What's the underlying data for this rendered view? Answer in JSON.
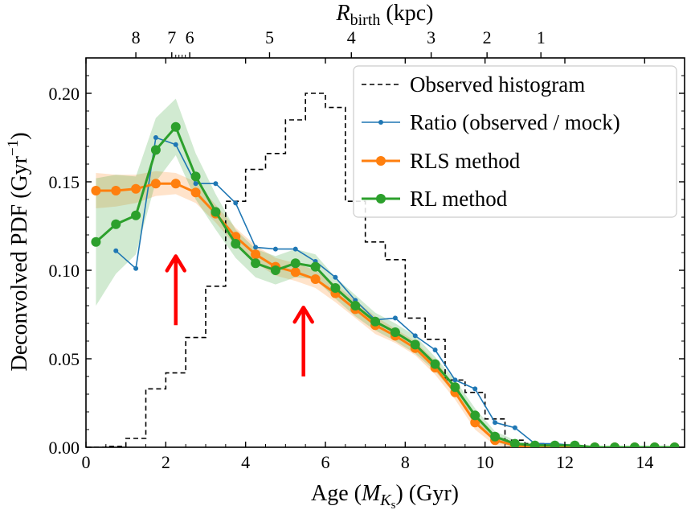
{
  "chart_data": {
    "type": "line",
    "xlabel": {
      "prefix": "Age  (",
      "var": "M",
      "sub": "K",
      "subsub": "s",
      "suffix": ")  (Gyr)"
    },
    "ylabel": {
      "prefix": "Deconvolved PDF  (Gyr",
      "sup": "−1",
      "suffix": ")"
    },
    "top_axis_label": {
      "var": "R",
      "sub": "birth",
      "suffix": "  (kpc)"
    },
    "xlim": [
      0,
      15
    ],
    "ylim": [
      0,
      0.22
    ],
    "x_ticks": [
      0,
      2,
      4,
      6,
      8,
      10,
      12,
      14
    ],
    "y_ticks": [
      0.0,
      0.05,
      0.1,
      0.15,
      0.2
    ],
    "y_tick_labels": [
      "0.00",
      "0.05",
      "0.10",
      "0.15",
      "0.20"
    ],
    "top_ticks": [
      {
        "label": "8",
        "age": 1.25
      },
      {
        "label": "7",
        "age": 2.15
      },
      {
        "label": "6",
        "age": 2.6
      },
      {
        "label": "5",
        "age": 4.6
      },
      {
        "label": "4",
        "age": 6.65
      },
      {
        "label": "3",
        "age": 8.65
      },
      {
        "label": "2",
        "age": 10.05
      },
      {
        "label": "1",
        "age": 11.4
      }
    ],
    "top_minor_ticks": [
      2.25,
      2.33,
      2.41,
      2.49
    ],
    "legend_position": "upper right",
    "series": [
      {
        "name": "Observed histogram",
        "kind": "step",
        "color": "#000000",
        "bin_edges": [
          0.0,
          0.5,
          1.0,
          1.5,
          2.0,
          2.5,
          3.0,
          3.5,
          4.0,
          4.5,
          5.0,
          5.5,
          6.0,
          6.5,
          7.0,
          7.5,
          8.0,
          8.5,
          9.0,
          9.5,
          10.0,
          10.5,
          11.0,
          11.5,
          12.0,
          12.5,
          13.0
        ],
        "values": [
          0.0,
          0.0005,
          0.005,
          0.033,
          0.042,
          0.062,
          0.091,
          0.139,
          0.157,
          0.166,
          0.185,
          0.2,
          0.192,
          0.139,
          0.116,
          0.106,
          0.073,
          0.061,
          0.038,
          0.031,
          0.016,
          0.004,
          0.002,
          0.001,
          0.0,
          0.0
        ]
      },
      {
        "name": "Ratio (observed / mock)",
        "kind": "line",
        "color": "#1f77b4",
        "x": [
          0.75,
          1.25,
          1.75,
          2.25,
          2.75,
          3.25,
          3.75,
          4.25,
          4.75,
          5.25,
          5.75,
          6.25,
          6.75,
          7.25,
          7.75,
          8.25,
          8.75,
          9.25,
          9.75,
          10.25,
          10.75,
          11.25,
          11.75,
          12.25,
          12.75
        ],
        "y": [
          0.111,
          0.101,
          0.175,
          0.171,
          0.149,
          0.149,
          0.138,
          0.113,
          0.112,
          0.112,
          0.105,
          0.096,
          0.083,
          0.072,
          0.073,
          0.063,
          0.055,
          0.038,
          0.033,
          0.014,
          0.011,
          0.002,
          0.002,
          0.001,
          0.0
        ]
      },
      {
        "name": "RLS method",
        "kind": "line",
        "color": "#ff7f0e",
        "band_color": "#ff7f0e",
        "x": [
          0.25,
          0.75,
          1.25,
          1.75,
          2.25,
          2.75,
          3.25,
          3.75,
          4.25,
          4.75,
          5.25,
          5.75,
          6.25,
          6.75,
          7.25,
          7.75,
          8.25,
          8.75,
          9.25,
          9.75,
          10.25,
          10.75,
          11.25,
          11.75,
          12.25,
          12.75,
          13.25,
          13.75,
          14.25,
          14.75
        ],
        "y": [
          0.145,
          0.145,
          0.146,
          0.149,
          0.149,
          0.144,
          0.132,
          0.119,
          0.109,
          0.102,
          0.099,
          0.095,
          0.087,
          0.078,
          0.069,
          0.063,
          0.056,
          0.045,
          0.031,
          0.014,
          0.004,
          0.001,
          0.0,
          0.0,
          0.0,
          0.0,
          0.0,
          0.0,
          0.0,
          0.0
        ],
        "band": [
          0.01,
          0.009,
          0.008,
          0.007,
          0.006,
          0.006,
          0.005,
          0.005,
          0.005,
          0.005,
          0.005,
          0.005,
          0.005,
          0.005,
          0.005,
          0.004,
          0.004,
          0.004,
          0.004,
          0.004,
          0.003,
          0.001,
          0.0,
          0.0,
          0.0,
          0.0,
          0.0,
          0.0,
          0.0,
          0.0
        ]
      },
      {
        "name": "RL method",
        "kind": "line",
        "color": "#2ca02c",
        "band_color": "#2ca02c",
        "x": [
          0.25,
          0.75,
          1.25,
          1.75,
          2.25,
          2.75,
          3.25,
          3.75,
          4.25,
          4.75,
          5.25,
          5.75,
          6.25,
          6.75,
          7.25,
          7.75,
          8.25,
          8.75,
          9.25,
          9.75,
          10.25,
          10.75,
          11.25,
          11.75,
          12.25,
          12.75,
          13.25,
          13.75,
          14.25,
          14.75
        ],
        "y": [
          0.116,
          0.126,
          0.131,
          0.168,
          0.181,
          0.153,
          0.133,
          0.115,
          0.104,
          0.1,
          0.104,
          0.102,
          0.09,
          0.08,
          0.071,
          0.065,
          0.058,
          0.047,
          0.034,
          0.018,
          0.006,
          0.002,
          0.001,
          0.001,
          0.001,
          0.0,
          0.0,
          0.0,
          0.0,
          0.0
        ],
        "band": [
          0.036,
          0.028,
          0.022,
          0.018,
          0.016,
          0.013,
          0.01,
          0.008,
          0.008,
          0.008,
          0.008,
          0.007,
          0.006,
          0.006,
          0.005,
          0.005,
          0.005,
          0.004,
          0.004,
          0.004,
          0.003,
          0.002,
          0.001,
          0.001,
          0.001,
          0.0,
          0.0,
          0.0,
          0.0,
          0.0
        ]
      }
    ],
    "annotations": [
      {
        "kind": "arrow",
        "color": "#ff0000",
        "x": 2.25,
        "y_from": 0.069,
        "y_to": 0.108
      },
      {
        "kind": "arrow",
        "color": "#ff0000",
        "x": 5.45,
        "y_from": 0.04,
        "y_to": 0.079
      }
    ]
  }
}
